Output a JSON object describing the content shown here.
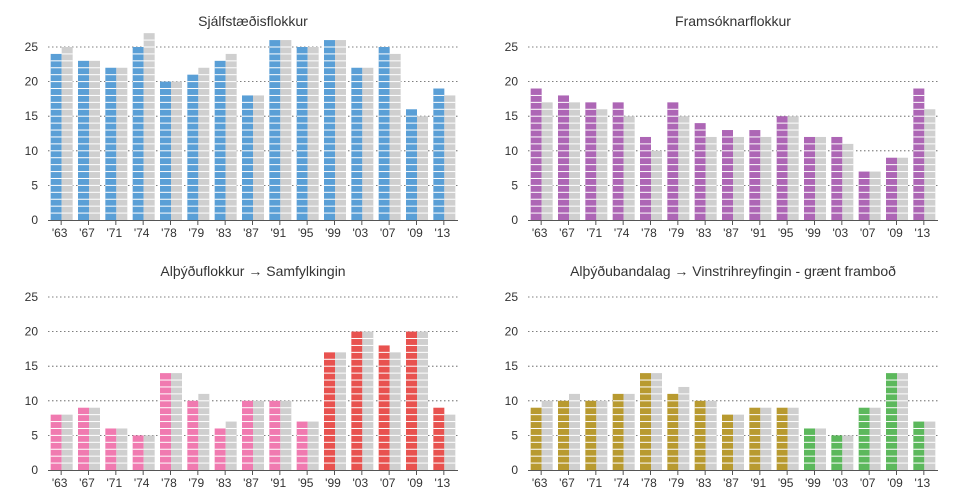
{
  "chart_data": [
    {
      "type": "bar",
      "title": "Sjálfstæðisflokkur",
      "categories": [
        "'63",
        "'67",
        "'71",
        "'74",
        "'78",
        "'79",
        "'83",
        "'87",
        "'91",
        "'95",
        "'99",
        "'03",
        "'07",
        "'09",
        "'13"
      ],
      "series": [
        {
          "values": [
            24,
            23,
            22,
            25,
            20,
            21,
            23,
            18,
            26,
            25,
            26,
            22,
            25,
            16,
            19
          ],
          "colors": [
            "#5a9fd6",
            "#5a9fd6",
            "#5a9fd6",
            "#5a9fd6",
            "#5a9fd6",
            "#5a9fd6",
            "#5a9fd6",
            "#5a9fd6",
            "#5a9fd6",
            "#5a9fd6",
            "#5a9fd6",
            "#5a9fd6",
            "#5a9fd6",
            "#5a9fd6",
            "#5a9fd6"
          ]
        },
        {
          "values": [
            25,
            23,
            22,
            27,
            20,
            22,
            24,
            18,
            26,
            25,
            26,
            22,
            24,
            15,
            18
          ],
          "color": "#cfcfcf"
        }
      ],
      "ylim": [
        0,
        25
      ],
      "yticks": [
        0,
        5,
        10,
        15,
        20,
        25
      ],
      "grid": true
    },
    {
      "type": "bar",
      "title": "Framsóknarflokkur",
      "categories": [
        "'63",
        "'67",
        "'71",
        "'74",
        "'78",
        "'79",
        "'83",
        "'87",
        "'91",
        "'95",
        "'99",
        "'03",
        "'07",
        "'09",
        "'13"
      ],
      "series": [
        {
          "values": [
            19,
            18,
            17,
            17,
            12,
            17,
            14,
            13,
            13,
            15,
            12,
            12,
            7,
            9,
            19
          ],
          "colors": [
            "#ad66b5",
            "#ad66b5",
            "#ad66b5",
            "#ad66b5",
            "#ad66b5",
            "#ad66b5",
            "#ad66b5",
            "#ad66b5",
            "#ad66b5",
            "#ad66b5",
            "#ad66b5",
            "#ad66b5",
            "#ad66b5",
            "#ad66b5",
            "#ad66b5"
          ]
        },
        {
          "values": [
            17,
            17,
            16,
            15,
            10,
            15,
            12,
            12,
            12,
            15,
            12,
            11,
            7,
            9,
            16
          ],
          "color": "#cfcfcf"
        }
      ],
      "ylim": [
        0,
        25
      ],
      "yticks": [
        0,
        5,
        10,
        15,
        20,
        25
      ],
      "grid": true
    },
    {
      "type": "bar",
      "title": "Alþýðuflokkur → Samfylkingin",
      "categories": [
        "'63",
        "'67",
        "'71",
        "'74",
        "'78",
        "'79",
        "'83",
        "'87",
        "'91",
        "'95",
        "'99",
        "'03",
        "'07",
        "'09",
        "'13"
      ],
      "series": [
        {
          "values": [
            8,
            9,
            6,
            5,
            14,
            10,
            6,
            10,
            10,
            7,
            17,
            20,
            18,
            20,
            9
          ],
          "colors": [
            "#f07ab0",
            "#f07ab0",
            "#f07ab0",
            "#f07ab0",
            "#f07ab0",
            "#f07ab0",
            "#f07ab0",
            "#f07ab0",
            "#f07ab0",
            "#f07ab0",
            "#e8524f",
            "#e8524f",
            "#e8524f",
            "#e8524f",
            "#e8524f"
          ]
        },
        {
          "values": [
            8,
            9,
            6,
            5,
            14,
            11,
            7,
            10,
            10,
            7,
            17,
            20,
            17,
            20,
            8
          ],
          "color": "#cfcfcf"
        }
      ],
      "ylim": [
        0,
        25
      ],
      "yticks": [
        0,
        5,
        10,
        15,
        20,
        25
      ],
      "grid": true
    },
    {
      "type": "bar",
      "title": "Alþýðubandalag → Vinstrihreyfingin - grænt framboð",
      "categories": [
        "'63",
        "'67",
        "'71",
        "'74",
        "'78",
        "'79",
        "'83",
        "'87",
        "'91",
        "'95",
        "'99",
        "'03",
        "'07",
        "'09",
        "'13"
      ],
      "series": [
        {
          "values": [
            9,
            10,
            10,
            11,
            14,
            11,
            10,
            8,
            9,
            9,
            6,
            5,
            9,
            14,
            7
          ],
          "colors": [
            "#b89a30",
            "#b89a30",
            "#b89a30",
            "#b89a30",
            "#b89a30",
            "#b89a30",
            "#b89a30",
            "#b89a30",
            "#b89a30",
            "#b89a30",
            "#5cb85c",
            "#5cb85c",
            "#5cb85c",
            "#5cb85c",
            "#5cb85c"
          ]
        },
        {
          "values": [
            10,
            11,
            10,
            11,
            14,
            12,
            10,
            8,
            9,
            9,
            6,
            5,
            9,
            14,
            7
          ],
          "color": "#cfcfcf"
        }
      ],
      "ylim": [
        0,
        25
      ],
      "yticks": [
        0,
        5,
        10,
        15,
        20,
        25
      ],
      "grid": true
    }
  ]
}
